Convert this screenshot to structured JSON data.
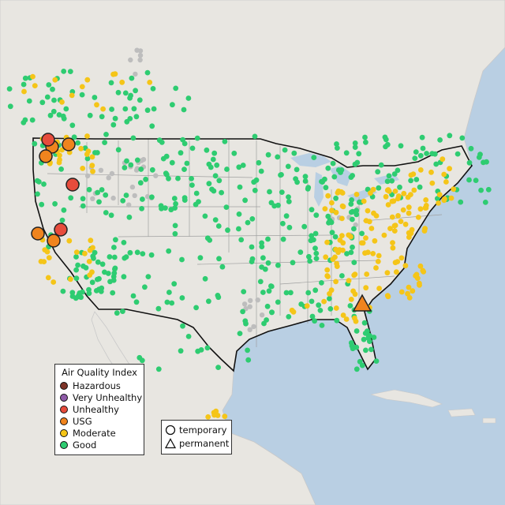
{
  "legend": {
    "title": "Air Quality Index",
    "categories": [
      {
        "label": "Hazardous",
        "color": "#7e3428"
      },
      {
        "label": "Very Unhealthy",
        "color": "#8f5ba8"
      },
      {
        "label": "Unhealthy",
        "color": "#e74c3c"
      },
      {
        "label": "USG",
        "color": "#f0841e"
      },
      {
        "label": "Moderate",
        "color": "#f5c518"
      },
      {
        "label": "Good",
        "color": "#2ecc71"
      }
    ]
  },
  "type_legend": {
    "items": [
      {
        "label": "temporary",
        "shape": "circle-outline-icon"
      },
      {
        "label": "permanent",
        "shape": "triangle-outline-icon"
      }
    ]
  },
  "colors": {
    "water": "#b9cfe3",
    "land": "#e8e6e1",
    "us_border": "#111111",
    "state_border": "#a0a0a0",
    "inactive_monitor": "#bdbdbd"
  }
}
